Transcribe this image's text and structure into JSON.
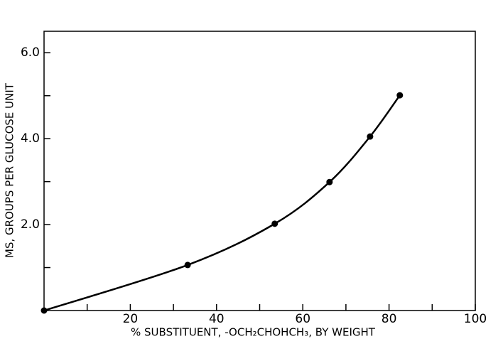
{
  "chart_data": {
    "type": "scatter",
    "xlabel": "% SUBSTITUENT, -OCH₂CHOHCH₃, BY WEIGHT",
    "ylabel": "MS, GROUPS PER GLUCOSE UNIT",
    "x": [
      0,
      33.3,
      53.5,
      66.2,
      75.6,
      82.5
    ],
    "values": [
      0,
      1.06,
      2.02,
      2.99,
      4.05,
      5.01
    ],
    "color": "#000000",
    "line": true,
    "xlim": [
      0,
      100
    ],
    "ylim": [
      0,
      6.5
    ],
    "xticks": [
      20,
      40,
      60,
      80,
      100
    ],
    "xminor_ticks": [
      10,
      30,
      50,
      70,
      90
    ],
    "yticks": [
      {
        "value": 2,
        "label": "2.0"
      },
      {
        "value": 4,
        "label": "4.0"
      },
      {
        "value": 6,
        "label": "6.0"
      }
    ],
    "yminor_ticks": [
      1,
      3,
      5
    ],
    "grid": false
  }
}
